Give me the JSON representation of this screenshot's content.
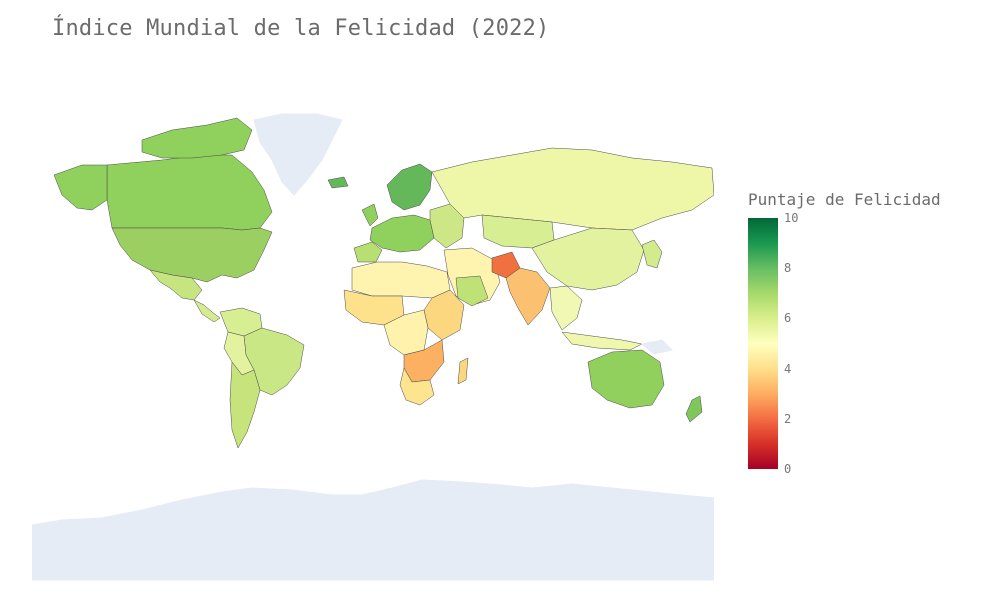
{
  "chart": {
    "title": "Índice Mundial de la Felicidad (2022)",
    "colorbar_title": "Puntaje de Felicidad",
    "colorbar_ticks": [
      "10",
      "8",
      "6",
      "4",
      "2",
      "0"
    ]
  },
  "chart_data": {
    "type": "choropleth",
    "title": "Índice Mundial de la Felicidad (2022)",
    "colorbar": {
      "title": "Puntaje de Felicidad",
      "range": [
        0,
        10
      ],
      "ticks": [
        0,
        2,
        4,
        6,
        8,
        10
      ],
      "colorscale": "RdYlGn"
    },
    "colors": {
      "background_land_missing": "#e5ecf6",
      "border": "#555555"
    }
  }
}
